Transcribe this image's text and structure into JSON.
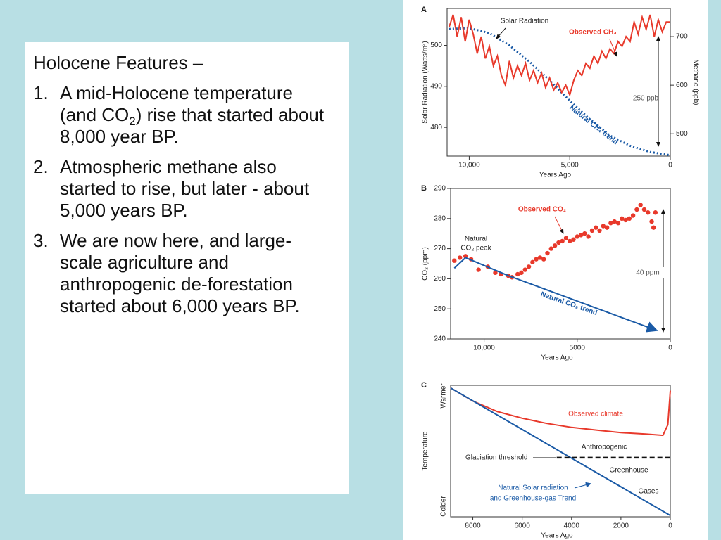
{
  "text_box": {
    "title": "Holocene Features –",
    "items": [
      {
        "marker": "1.",
        "text": [
          "A mid-Holocene temperature (and CO",
          "2",
          ") rise that started about 8,000 year BP."
        ]
      },
      {
        "marker": "2.",
        "text": [
          "Atmospheric methane also started to rise, but later - about 5,000 years BP."
        ]
      },
      {
        "marker": "3.",
        "text": [
          "We are now here, and large-scale agriculture and anthropogenic de-forestation started about 6,000 years BP."
        ]
      }
    ]
  },
  "chart_data": [
    {
      "type": "line",
      "panel": "A",
      "xlabel": "Years Ago",
      "ylabel": "Solar Radiation (Watts/m²)",
      "y2label": "Methane (ppb)",
      "xlim": [
        11100,
        0
      ],
      "xticks": [
        {
          "value": 10000,
          "label": "10,000"
        },
        {
          "value": 5000,
          "label": "5,000"
        },
        0
      ],
      "ylim": [
        473,
        509
      ],
      "yticks": [
        480,
        490,
        500
      ],
      "y2lim": [
        454,
        758
      ],
      "y2ticks": [
        500,
        600,
        700
      ],
      "series": [
        {
          "type": "line",
          "dash": "dotted",
          "color": "#1a5aa6",
          "x": [
            11000,
            10000,
            9000,
            8000,
            7000,
            6000,
            5000,
            4000,
            3000,
            2000,
            1000,
            0
          ],
          "values": [
            504,
            504.2,
            503,
            500,
            496,
            491.5,
            486.5,
            482,
            478,
            475.5,
            474,
            473.2
          ]
        },
        {
          "type": "line",
          "dash": "solid",
          "color": "#e8392b",
          "axis": "y2",
          "x": [
            11000,
            10800,
            10600,
            10400,
            10200,
            10000,
            9800,
            9600,
            9400,
            9200,
            9000,
            8800,
            8600,
            8400,
            8200,
            8000,
            7800,
            7600,
            7400,
            7200,
            7000,
            6800,
            6600,
            6400,
            6200,
            6000,
            5800,
            5600,
            5400,
            5200,
            5000,
            4800,
            4600,
            4400,
            4200,
            4000,
            3800,
            3600,
            3400,
            3200,
            3000,
            2800,
            2600,
            2400,
            2200,
            2000,
            1800,
            1600,
            1400,
            1200,
            1000,
            800,
            600,
            400,
            200,
            0
          ],
          "values": [
            720,
            745,
            700,
            740,
            690,
            735,
            705,
            665,
            700,
            655,
            680,
            640,
            660,
            620,
            600,
            650,
            615,
            640,
            620,
            645,
            610,
            630,
            605,
            625,
            595,
            615,
            590,
            605,
            585,
            600,
            580,
            610,
            630,
            620,
            645,
            635,
            660,
            645,
            670,
            655,
            675,
            665,
            690,
            680,
            700,
            690,
            730,
            705,
            740,
            715,
            745,
            700,
            735,
            710,
            730,
            730
          ]
        }
      ],
      "annotations": [
        "Solar Radiation",
        "Observed CH₄",
        "Natural CH₄ trend",
        "250 ppb"
      ]
    },
    {
      "type": "scatter",
      "panel": "B",
      "xlabel": "Years Ago",
      "ylabel": "CO₂ (ppm)",
      "xlim": [
        11800,
        0
      ],
      "xticks": [
        {
          "value": 10000,
          "label": "10,000"
        },
        5000,
        0
      ],
      "ylim": [
        240,
        290
      ],
      "yticks": [
        240,
        250,
        260,
        270,
        280,
        290
      ],
      "series": [
        {
          "type": "scatter",
          "color": "#e8392b",
          "x": [
            11600,
            11300,
            11000,
            10700,
            10300,
            9800,
            9400,
            9100,
            8700,
            8500,
            8200,
            8000,
            7800,
            7600,
            7400,
            7200,
            7000,
            6800,
            6600,
            6400,
            6200,
            6000,
            5800,
            5600,
            5400,
            5200,
            5000,
            4800,
            4600,
            4400,
            4200,
            4000,
            3800,
            3600,
            3400,
            3200,
            3000,
            2800,
            2600,
            2400,
            2200,
            2000,
            1800,
            1600,
            1400,
            1200,
            1000,
            900,
            800
          ],
          "values": [
            266,
            267,
            267.5,
            266.5,
            263,
            264,
            262,
            261.5,
            261,
            260.5,
            261.5,
            262,
            263,
            264,
            265.5,
            266.5,
            267,
            266.5,
            268.5,
            270,
            271,
            272,
            272.5,
            273.5,
            272.5,
            273,
            274,
            274.5,
            275,
            274,
            276,
            277,
            276,
            277.5,
            277,
            278.5,
            279,
            278.5,
            280,
            279.5,
            280,
            281,
            283,
            284.5,
            283,
            282,
            279,
            277,
            282
          ]
        },
        {
          "type": "line",
          "dash": "solid",
          "color": "#1a5aa6",
          "arrow": true,
          "x": [
            11600,
            11000,
            8700,
            800
          ],
          "values": [
            263.5,
            267,
            261,
            243
          ]
        }
      ],
      "annotations": [
        "Observed CO₂",
        "Natural",
        "CO₂ peak",
        "Natural CO₂ trend",
        "40 ppm"
      ]
    },
    {
      "type": "line",
      "panel": "C",
      "xlabel": "Years Ago",
      "ylabel": "Temperature",
      "ytop_label": "Warmer",
      "ybottom_label": "Colder",
      "xlim": [
        8900,
        0
      ],
      "xticks": [
        8000,
        6000,
        4000,
        2000,
        0
      ],
      "ylim": [
        0,
        100
      ],
      "series": [
        {
          "type": "line",
          "dash": "solid",
          "color": "#e8392b",
          "x": [
            8900,
            8000,
            7000,
            6000,
            5000,
            4000,
            3000,
            2000,
            1000,
            300,
            100,
            0
          ],
          "values": [
            98,
            88,
            80,
            75,
            71,
            68,
            66,
            64,
            63,
            62,
            70,
            96
          ]
        },
        {
          "type": "line",
          "dash": "solid",
          "color": "#1a5aa6",
          "x": [
            8900,
            0
          ],
          "values": [
            98,
            1
          ]
        },
        {
          "type": "line",
          "dash": "dashed",
          "color": "#111111",
          "x": [
            4600,
            0
          ],
          "values": [
            45,
            45
          ]
        }
      ],
      "annotations": [
        "Observed climate",
        "Anthropogenic",
        "Glaciation threshold",
        "Greenhouse",
        "Gases",
        "Natural Solar radiation",
        "and Greenhouse-gas Trend"
      ]
    }
  ]
}
